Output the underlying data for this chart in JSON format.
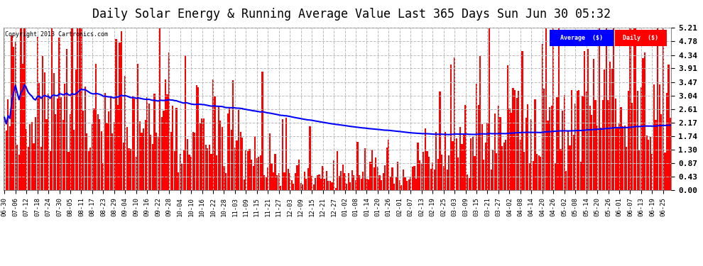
{
  "title": "Daily Solar Energy & Running Average Value Last 365 Days Sun Jun 30 05:32",
  "copyright": "Copyright 2013 Cartronics.com",
  "legend_avg": "Average  ($)",
  "legend_daily": "Daily  ($)",
  "yticks": [
    0.0,
    0.43,
    0.87,
    1.3,
    1.74,
    2.17,
    2.61,
    3.04,
    3.47,
    3.91,
    4.34,
    4.78,
    5.21
  ],
  "ymax": 5.21,
  "ymin": 0.0,
  "bar_color": "#ff0000",
  "avg_line_color": "#0000ff",
  "bg_color": "#ffffff",
  "plot_bg_color": "#ffffff",
  "grid_color": "#bbbbbb",
  "title_fontsize": 12,
  "n_bars": 365,
  "xtick_labels": [
    "06-30",
    "07-06",
    "07-12",
    "07-18",
    "07-24",
    "07-30",
    "08-05",
    "08-11",
    "08-17",
    "08-23",
    "08-29",
    "09-04",
    "09-10",
    "09-16",
    "09-22",
    "09-28",
    "10-04",
    "10-10",
    "10-16",
    "10-22",
    "10-28",
    "11-03",
    "11-09",
    "11-15",
    "11-21",
    "11-27",
    "12-03",
    "12-09",
    "12-15",
    "12-21",
    "12-27",
    "01-02",
    "01-08",
    "01-14",
    "01-20",
    "01-26",
    "02-01",
    "02-07",
    "02-13",
    "02-19",
    "02-25",
    "03-03",
    "03-09",
    "03-15",
    "03-21",
    "03-27",
    "04-02",
    "04-08",
    "04-14",
    "04-20",
    "04-26",
    "05-02",
    "05-08",
    "05-14",
    "05-20",
    "05-26",
    "06-01",
    "06-07",
    "06-13",
    "06-19",
    "06-25"
  ]
}
